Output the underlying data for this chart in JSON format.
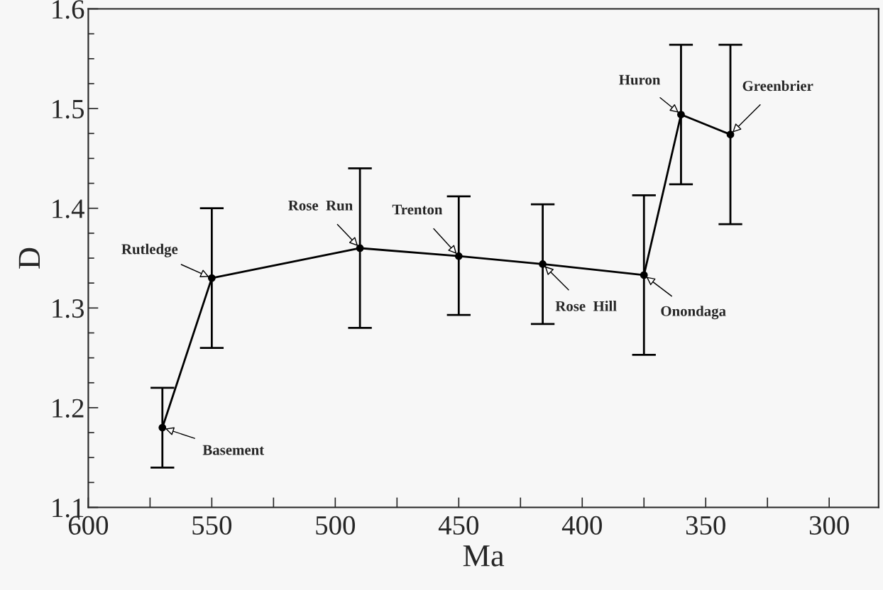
{
  "chart_data": {
    "type": "line",
    "xlabel": "Ma",
    "ylabel": "D",
    "x": [
      570,
      550,
      490,
      450,
      416,
      375,
      360,
      340
    ],
    "series": [
      {
        "color": "#000000",
        "values": [
          1.18,
          1.33,
          1.36,
          1.352,
          1.344,
          1.333,
          1.494,
          1.474
        ],
        "errors": [
          [
            1.14,
            1.22
          ],
          [
            1.26,
            1.4
          ],
          [
            1.28,
            1.44
          ],
          [
            1.293,
            1.412
          ],
          [
            1.284,
            1.404
          ],
          [
            1.253,
            1.413
          ],
          [
            1.424,
            1.564
          ],
          [
            1.384,
            1.564
          ]
        ]
      }
    ],
    "marker": "circle",
    "line_style": "solid",
    "grid": false,
    "legend": false,
    "xlim": [
      600,
      280
    ],
    "ylim": [
      1.1,
      1.6
    ],
    "xticks": [
      600,
      {
        "value": 575,
        "label": null
      },
      550,
      {
        "value": 525,
        "label": null
      },
      500,
      {
        "value": 475,
        "label": null
      },
      450,
      {
        "value": 425,
        "label": null
      },
      400,
      {
        "value": 375,
        "label": null
      },
      350,
      {
        "value": 325,
        "label": null
      },
      300
    ],
    "yticks": [
      1.1,
      {
        "value": 1.125,
        "label": null
      },
      {
        "value": 1.15,
        "label": null
      },
      {
        "value": 1.175,
        "label": null
      },
      1.2,
      {
        "value": 1.225,
        "label": null
      },
      {
        "value": 1.25,
        "label": null
      },
      {
        "value": 1.275,
        "label": null
      },
      1.3,
      {
        "value": 1.325,
        "label": null
      },
      {
        "value": 1.35,
        "label": null
      },
      {
        "value": 1.375,
        "label": null
      },
      1.4,
      {
        "value": 1.425,
        "label": null
      },
      {
        "value": 1.45,
        "label": null
      },
      {
        "value": 1.475,
        "label": null
      },
      1.5,
      {
        "value": 1.525,
        "label": null
      },
      {
        "value": 1.55,
        "label": null
      },
      {
        "value": 1.575,
        "label": null
      },
      1.6
    ],
    "annotations": [
      {
        "text": "Basement",
        "x": 570,
        "y": 1.18
      },
      {
        "text": "Rutledge",
        "x": 550,
        "y": 1.33
      },
      {
        "text": "Rose  Run",
        "x": 490,
        "y": 1.36
      },
      {
        "text": "Trenton",
        "x": 450,
        "y": 1.352
      },
      {
        "text": "Rose  Hill",
        "x": 416,
        "y": 1.344
      },
      {
        "text": "Onondaga",
        "x": 375,
        "y": 1.333
      },
      {
        "text": "Huron",
        "x": 360,
        "y": 1.494
      },
      {
        "text": "Greenbrier",
        "x": 340,
        "y": 1.474
      }
    ]
  }
}
